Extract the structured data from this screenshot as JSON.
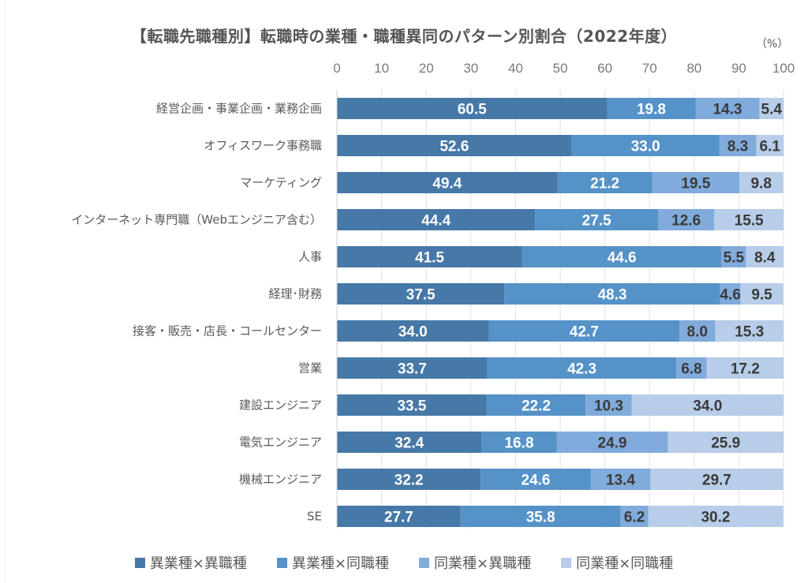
{
  "chart_data": {
    "type": "bar",
    "orientation": "horizontal",
    "stacked": true,
    "title": "【転職先職種別】転職時の業種・職種異同のパターン別割合（2022年度）",
    "unit_label": "（%）",
    "xlabel": "",
    "ylabel": "",
    "xlim": [
      0,
      100
    ],
    "x_ticks": [
      0,
      10,
      20,
      30,
      40,
      50,
      60,
      70,
      80,
      90,
      100
    ],
    "grid": true,
    "legend_position": "bottom",
    "categories": [
      "経営企画・事業企画・業務企画",
      "オフィスワーク事務職",
      "マーケティング",
      "インターネット専門職（Webエンジニア含む）",
      "人事",
      "経理･財務",
      "接客・販売・店長・コールセンター",
      "営業",
      "建設エンジニア",
      "電気エンジニア",
      "機械エンジニア",
      "SE"
    ],
    "series": [
      {
        "name": "異業種×異職種",
        "color": "#4678a8",
        "label_color": "#ffffff",
        "values": [
          60.5,
          52.6,
          49.4,
          44.4,
          41.5,
          37.5,
          34.0,
          33.7,
          33.5,
          32.4,
          32.2,
          27.7
        ]
      },
      {
        "name": "異業種×同職種",
        "color": "#5592c8",
        "label_color": "#ffffff",
        "values": [
          19.8,
          33.0,
          21.2,
          27.5,
          44.6,
          48.3,
          42.7,
          42.3,
          22.2,
          16.8,
          24.6,
          35.8
        ]
      },
      {
        "name": "同業種×異職種",
        "color": "#80abdb",
        "label_color": "#3a3a3a",
        "values": [
          14.3,
          8.3,
          19.5,
          12.6,
          5.5,
          4.6,
          8.0,
          6.8,
          10.3,
          24.9,
          13.4,
          6.2
        ]
      },
      {
        "name": "同業種×同職種",
        "color": "#b7cde9",
        "label_color": "#3a3a3a",
        "values": [
          5.4,
          6.1,
          9.8,
          15.5,
          8.4,
          9.5,
          15.3,
          17.2,
          34.0,
          25.9,
          29.7,
          30.2
        ]
      }
    ]
  }
}
